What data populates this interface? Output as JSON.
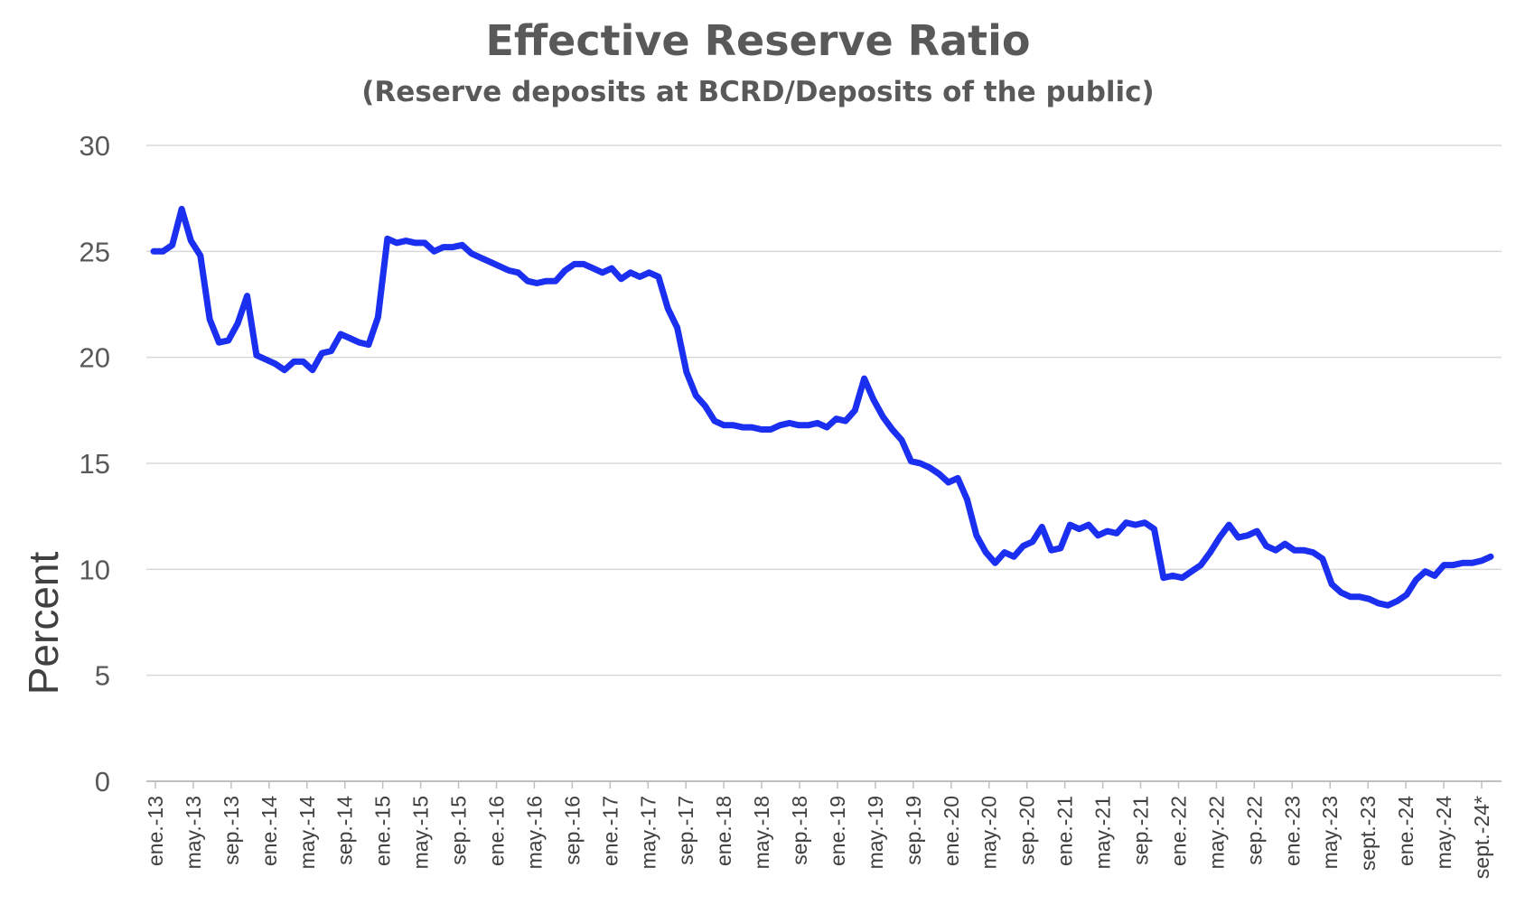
{
  "chart_data": {
    "type": "line",
    "title": "Effective Reserve Ratio",
    "subtitle": "(Reserve deposits at BCRD/Deposits of the public)",
    "ylabel": "Percent",
    "xlabel": "",
    "ylim": [
      0,
      30
    ],
    "yticks": [
      0,
      5,
      10,
      15,
      20,
      25,
      30
    ],
    "grid": true,
    "legend": "none",
    "line_color": "#1a2ff0",
    "tick_labels": [
      "ene.-13",
      "may.-13",
      "sep.-13",
      "ene.-14",
      "may.-14",
      "sep.-14",
      "ene.-15",
      "may.-15",
      "sep.-15",
      "ene.-16",
      "may.-16",
      "sep.-16",
      "ene.-17",
      "may.-17",
      "sep.-17",
      "ene.-18",
      "may.-18",
      "sep.-18",
      "ene.-19",
      "may.-19",
      "sep.-19",
      "ene.-20",
      "may.-20",
      "sep.-20",
      "ene.-21",
      "may.-21",
      "sep.-21",
      "ene.-22",
      "may.-22",
      "sep.-22",
      "ene.-23",
      "may.-23",
      "sept.-23",
      "ene.-24",
      "may.-24",
      "sept.-24*"
    ],
    "series": [
      {
        "values": [
          25.0,
          25.0,
          25.3,
          27.0,
          25.5,
          24.8,
          21.8,
          20.7,
          20.8,
          21.6,
          22.9,
          20.1,
          19.9,
          19.7,
          19.4,
          19.8,
          19.8,
          19.4,
          20.2,
          20.3,
          21.1,
          20.9,
          20.7,
          20.6,
          21.9,
          25.6,
          25.4,
          25.5,
          25.4,
          25.4,
          25.0,
          25.2,
          25.2,
          25.3,
          24.9,
          24.7,
          24.5,
          24.3,
          24.1,
          24.0,
          23.6,
          23.5,
          23.6,
          23.6,
          24.1,
          24.4,
          24.4,
          24.2,
          24.0,
          24.2,
          23.7,
          24.0,
          23.8,
          24.0,
          23.8,
          22.3,
          21.4,
          19.3,
          18.2,
          17.7,
          17.0,
          16.8,
          16.8,
          16.7,
          16.7,
          16.6,
          16.6,
          16.8,
          16.9,
          16.8,
          16.8,
          16.9,
          16.7,
          17.1,
          17.0,
          17.5,
          19.0,
          18.0,
          17.2,
          16.6,
          16.1,
          15.1,
          15.0,
          14.8,
          14.5,
          14.1,
          14.3,
          13.3,
          11.6,
          10.8,
          10.3,
          10.8,
          10.6,
          11.1,
          11.3,
          12.0,
          10.9,
          11.0,
          12.1,
          11.9,
          12.1,
          11.6,
          11.8,
          11.7,
          12.2,
          12.1,
          12.2,
          11.9,
          9.6,
          9.7,
          9.6,
          9.9,
          10.2,
          10.8,
          11.5,
          12.1,
          11.5,
          11.6,
          11.8,
          11.1,
          10.9,
          11.2,
          10.9,
          10.9,
          10.8,
          10.5,
          9.3,
          8.9,
          8.7,
          8.7,
          8.6,
          8.4,
          8.3,
          8.5,
          8.8,
          9.5,
          9.9,
          9.7,
          10.2,
          10.2,
          10.3,
          10.3,
          10.4,
          10.6
        ]
      }
    ]
  }
}
